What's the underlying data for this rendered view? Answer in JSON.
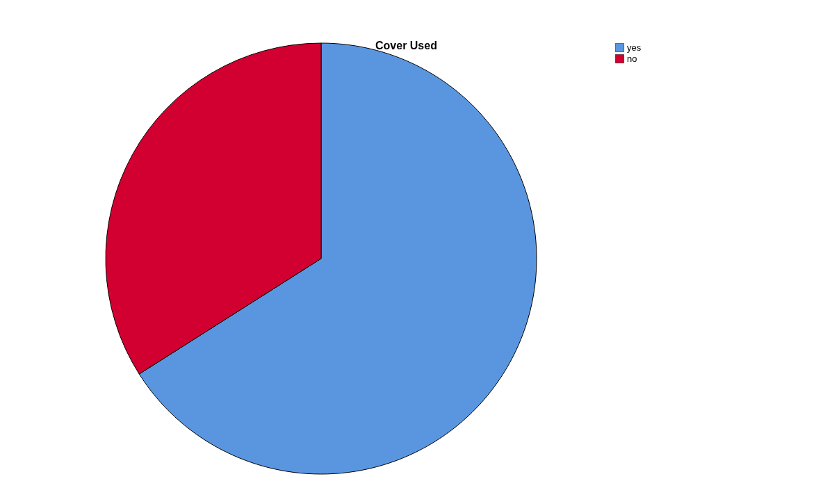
{
  "chart_data": {
    "type": "pie",
    "title": "Cover Used",
    "categories": [
      "yes",
      "no"
    ],
    "values": [
      66,
      34
    ],
    "colors": [
      "#5a96e0",
      "#d20030"
    ],
    "legend": "top right"
  }
}
